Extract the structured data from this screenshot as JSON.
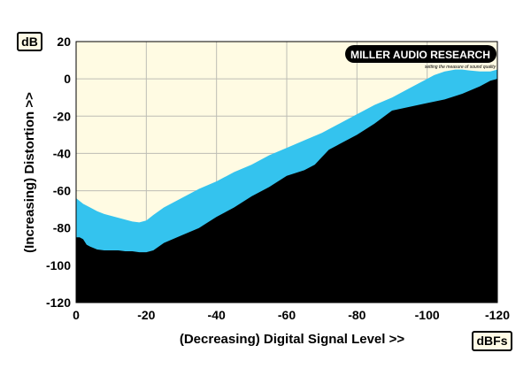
{
  "chart_data": {
    "type": "area",
    "unit_y_label": "dB",
    "unit_x_label": "dBFs",
    "xlabel": "(Decreasing) Digital Signal Level >>",
    "ylabel": "(Increasing) Distortion >>",
    "xlim": [
      0,
      -120
    ],
    "ylim": [
      -120,
      20
    ],
    "x_ticks": [
      0,
      -20,
      -40,
      -60,
      -80,
      -100,
      -120
    ],
    "y_ticks": [
      20,
      0,
      -20,
      -40,
      -60,
      -80,
      -100,
      -120
    ],
    "grid": true,
    "logo": {
      "main": "MILLER AUDIO RESEARCH",
      "tagline": "setting the measure of sound quality"
    },
    "series": [
      {
        "x": [
          0,
          -2,
          -4,
          -6,
          -8,
          -10,
          -12,
          -14,
          -16,
          -18,
          -20,
          -22,
          -25,
          -30,
          -35,
          -40,
          -45,
          -50,
          -55,
          -60,
          -65,
          -70,
          -75,
          -80,
          -85,
          -90,
          -95,
          -100,
          -102,
          -105,
          -108,
          -110,
          -112,
          -115,
          -118,
          -120
        ],
        "values": [
          -64,
          -67,
          -69,
          -71,
          -72.5,
          -73.5,
          -74.5,
          -75.5,
          -76.5,
          -77,
          -76,
          -73,
          -69,
          -64,
          -59,
          -55,
          -50,
          -46,
          -41,
          -37,
          -33,
          -29,
          -24,
          -19,
          -14,
          -10,
          -5,
          0,
          2,
          4,
          5,
          5,
          4.5,
          4,
          4,
          5
        ]
      },
      {
        "x": [
          0,
          -1,
          -2,
          -3,
          -4,
          -6,
          -8,
          -10,
          -12,
          -14,
          -16,
          -18,
          -20,
          -22,
          -25,
          -30,
          -35,
          -40,
          -45,
          -50,
          -55,
          -60,
          -65,
          -68,
          -70,
          -72,
          -75,
          -80,
          -85,
          -90,
          -95,
          -100,
          -105,
          -110,
          -115,
          -118,
          -120
        ],
        "values": [
          -85,
          -85,
          -86,
          -89,
          -90,
          -91.5,
          -92,
          -92,
          -92,
          -92.5,
          -92.5,
          -93,
          -93,
          -92,
          -88,
          -84,
          -80,
          -74,
          -69,
          -63,
          -58,
          -52,
          -49,
          -46,
          -42,
          -38,
          -35,
          -30,
          -24,
          -17,
          -15,
          -13,
          -11,
          -8,
          -4,
          -1,
          0
        ]
      }
    ]
  }
}
